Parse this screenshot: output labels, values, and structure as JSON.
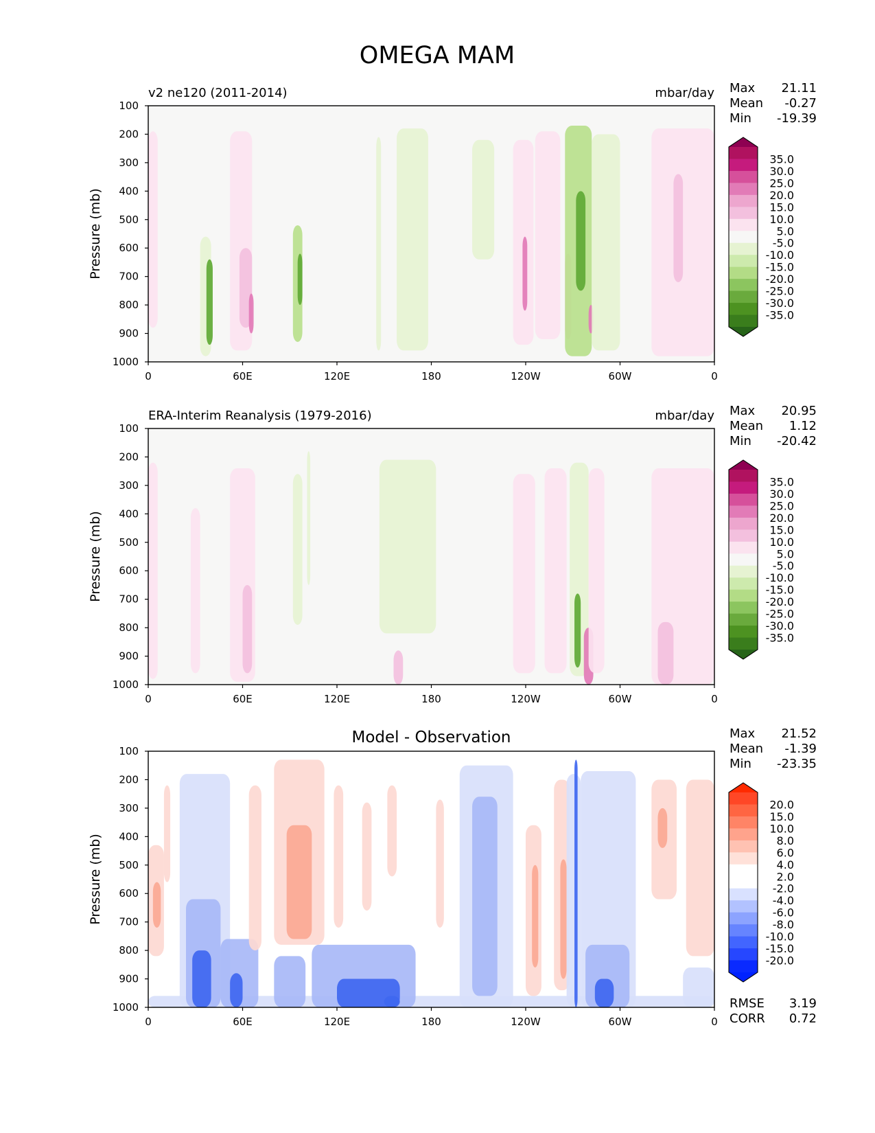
{
  "figure_title": "OMEGA MAM",
  "colors": {
    "axis": "#000000",
    "field_bg": "#f7f7f6",
    "pink_light": "#fce3f0",
    "pink_mid": "#f3c0de",
    "pink_strong": "#e27bb7",
    "green_light": "#e6f3d2",
    "green_mid": "#b9e08c",
    "green_strong": "#5fa935",
    "blue_light": "#d8e0fb",
    "blue_mid": "#a8b8f7",
    "blue_strong": "#3f67f0",
    "red_light": "#fdd9d2",
    "red_mid": "#fba894",
    "red_strong": "#f06a4c"
  },
  "chart_data": [
    {
      "type": "heatmap",
      "id": "model",
      "title_left": "v2 ne120 (2011-2014)",
      "title_center": "",
      "units": "mbar/day",
      "ylabel": "Pressure (mb)",
      "yticks": [
        "100",
        "200",
        "300",
        "400",
        "500",
        "600",
        "700",
        "800",
        "900",
        "1000"
      ],
      "ylim": [
        1000,
        100
      ],
      "xticks": [
        "0",
        "60E",
        "120E",
        "180",
        "120W",
        "60W",
        "0"
      ],
      "xlim_deg_east": [
        0,
        360
      ],
      "stats": [
        {
          "label": "Max",
          "value": "21.11"
        },
        {
          "label": "Mean",
          "value": "-0.27"
        },
        {
          "label": "Min",
          "value": "-19.39"
        }
      ],
      "colorbar": {
        "levels": [
          "35.0",
          "30.0",
          "25.0",
          "20.0",
          "15.0",
          "10.0",
          "5.0",
          "-5.0",
          "-10.0",
          "-15.0",
          "-20.0",
          "-25.0",
          "-30.0",
          "-35.0"
        ],
        "colors": [
          "#8e0152",
          "#b0125f",
          "#c51b7d",
          "#d6509b",
          "#e27bb7",
          "#eda6ce",
          "#f3c0de",
          "#fbe3ef",
          "#f7f7f6",
          "#e6f3d2",
          "#cdeaad",
          "#b3dc86",
          "#8cc55f",
          "#6aaa3d",
          "#4d9221",
          "#3a7d1c",
          "#276419"
        ]
      },
      "features": [
        {
          "lon0": 0,
          "lon1": 6,
          "p0": 190,
          "p1": 880,
          "v": 4
        },
        {
          "lon0": 33,
          "lon1": 40,
          "p0": 560,
          "p1": 980,
          "v": -6
        },
        {
          "lon0": 37,
          "lon1": 41,
          "p0": 640,
          "p1": 940,
          "v": -12
        },
        {
          "lon0": 52,
          "lon1": 66,
          "p0": 190,
          "p1": 960,
          "v": 5
        },
        {
          "lon0": 58,
          "lon1": 66,
          "p0": 600,
          "p1": 880,
          "v": 10
        },
        {
          "lon0": 64,
          "lon1": 67,
          "p0": 760,
          "p1": 900,
          "v": 18
        },
        {
          "lon0": 92,
          "lon1": 98,
          "p0": 520,
          "p1": 930,
          "v": -8
        },
        {
          "lon0": 95,
          "lon1": 98,
          "p0": 620,
          "p1": 800,
          "v": -15
        },
        {
          "lon0": 145,
          "lon1": 148,
          "p0": 210,
          "p1": 960,
          "v": -6
        },
        {
          "lon0": 158,
          "lon1": 178,
          "p0": 180,
          "p1": 960,
          "v": -6
        },
        {
          "lon0": 206,
          "lon1": 220,
          "p0": 220,
          "p1": 640,
          "v": -6
        },
        {
          "lon0": 232,
          "lon1": 245,
          "p0": 220,
          "p1": 940,
          "v": 5
        },
        {
          "lon0": 238,
          "lon1": 241,
          "p0": 560,
          "p1": 820,
          "v": 14
        },
        {
          "lon0": 246,
          "lon1": 262,
          "p0": 190,
          "p1": 920,
          "v": 5
        },
        {
          "lon0": 265,
          "lon1": 269,
          "p0": 620,
          "p1": 920,
          "v": 7
        },
        {
          "lon0": 265,
          "lon1": 282,
          "p0": 170,
          "p1": 980,
          "v": -7
        },
        {
          "lon0": 272,
          "lon1": 278,
          "p0": 400,
          "p1": 750,
          "v": -14
        },
        {
          "lon0": 280,
          "lon1": 283,
          "p0": 800,
          "p1": 900,
          "v": 16
        },
        {
          "lon0": 282,
          "lon1": 300,
          "p0": 200,
          "p1": 960,
          "v": -6
        },
        {
          "lon0": 320,
          "lon1": 360,
          "p0": 180,
          "p1": 980,
          "v": 6
        },
        {
          "lon0": 334,
          "lon1": 340,
          "p0": 340,
          "p1": 720,
          "v": 11
        }
      ]
    },
    {
      "type": "heatmap",
      "id": "obs",
      "title_left": "ERA-Interim Reanalysis (1979-2016)",
      "title_center": "",
      "units": "mbar/day",
      "ylabel": "Pressure (mb)",
      "yticks": [
        "100",
        "200",
        "300",
        "400",
        "500",
        "600",
        "700",
        "800",
        "900",
        "1000"
      ],
      "ylim": [
        1000,
        100
      ],
      "xticks": [
        "0",
        "60E",
        "120E",
        "180",
        "120W",
        "60W",
        "0"
      ],
      "xlim_deg_east": [
        0,
        360
      ],
      "stats": [
        {
          "label": "Max",
          "value": "20.95"
        },
        {
          "label": "Mean",
          "value": "1.12"
        },
        {
          "label": "Min",
          "value": "-20.42"
        }
      ],
      "colorbar": {
        "levels": [
          "35.0",
          "30.0",
          "25.0",
          "20.0",
          "15.0",
          "10.0",
          "5.0",
          "-5.0",
          "-10.0",
          "-15.0",
          "-20.0",
          "-25.0",
          "-30.0",
          "-35.0"
        ],
        "colors": [
          "#8e0152",
          "#b0125f",
          "#c51b7d",
          "#d6509b",
          "#e27bb7",
          "#eda6ce",
          "#f3c0de",
          "#fbe3ef",
          "#f7f7f6",
          "#e6f3d2",
          "#cdeaad",
          "#b3dc86",
          "#8cc55f",
          "#6aaa3d",
          "#4d9221",
          "#3a7d1c",
          "#276419"
        ]
      },
      "features": [
        {
          "lon0": 0,
          "lon1": 6,
          "p0": 220,
          "p1": 980,
          "v": 4
        },
        {
          "lon0": 27,
          "lon1": 33,
          "p0": 380,
          "p1": 960,
          "v": 4
        },
        {
          "lon0": 52,
          "lon1": 68,
          "p0": 240,
          "p1": 990,
          "v": 5
        },
        {
          "lon0": 60,
          "lon1": 66,
          "p0": 650,
          "p1": 960,
          "v": 10
        },
        {
          "lon0": 92,
          "lon1": 98,
          "p0": 260,
          "p1": 790,
          "v": -6
        },
        {
          "lon0": 101,
          "lon1": 103,
          "p0": 180,
          "p1": 650,
          "v": -6
        },
        {
          "lon0": 147,
          "lon1": 183,
          "p0": 210,
          "p1": 820,
          "v": -6
        },
        {
          "lon0": 156,
          "lon1": 162,
          "p0": 880,
          "p1": 1000,
          "v": 8
        },
        {
          "lon0": 232,
          "lon1": 246,
          "p0": 260,
          "p1": 960,
          "v": 5
        },
        {
          "lon0": 252,
          "lon1": 266,
          "p0": 240,
          "p1": 960,
          "v": 5
        },
        {
          "lon0": 268,
          "lon1": 280,
          "p0": 220,
          "p1": 970,
          "v": -6
        },
        {
          "lon0": 271,
          "lon1": 275,
          "p0": 680,
          "p1": 940,
          "v": -14
        },
        {
          "lon0": 277,
          "lon1": 283,
          "p0": 800,
          "p1": 1000,
          "v": 15
        },
        {
          "lon0": 280,
          "lon1": 290,
          "p0": 240,
          "p1": 960,
          "v": 4
        },
        {
          "lon0": 320,
          "lon1": 360,
          "p0": 240,
          "p1": 1000,
          "v": 5
        },
        {
          "lon0": 324,
          "lon1": 334,
          "p0": 780,
          "p1": 1000,
          "v": 9
        }
      ]
    },
    {
      "type": "heatmap",
      "id": "diff",
      "title_left": "",
      "title_center": "Model - Observation",
      "units": "",
      "ylabel": "Pressure (mb)",
      "yticks": [
        "100",
        "200",
        "300",
        "400",
        "500",
        "600",
        "700",
        "800",
        "900",
        "1000"
      ],
      "ylim": [
        1000,
        100
      ],
      "xticks": [
        "0",
        "60E",
        "120E",
        "180",
        "120W",
        "60W",
        "0"
      ],
      "xlim_deg_east": [
        0,
        360
      ],
      "stats": [
        {
          "label": "Max",
          "value": "21.52"
        },
        {
          "label": "Mean",
          "value": "-1.39"
        },
        {
          "label": "Min",
          "value": "-23.35"
        }
      ],
      "extra_stats": [
        {
          "label": "RMSE",
          "value": "3.19"
        },
        {
          "label": "CORR",
          "value": "0.72"
        }
      ],
      "colorbar": {
        "levels": [
          "20.0",
          "15.0",
          "10.0",
          "8.0",
          "6.0",
          "4.0",
          "2.0",
          "-2.0",
          "-4.0",
          "-6.0",
          "-8.0",
          "-10.0",
          "-15.0",
          "-20.0"
        ],
        "colors": [
          "#ff2a00",
          "#ff4726",
          "#ff6542",
          "#ff8466",
          "#ffa38c",
          "#ffc2b2",
          "#ffe1d9",
          "#ffffff",
          "#ffffff",
          "#d9e1ff",
          "#b2c2ff",
          "#8ca3ff",
          "#6684ff",
          "#4265ff",
          "#2647ff",
          "#0a2aff",
          "#0022ff"
        ]
      },
      "features": [
        {
          "lon0": 0,
          "lon1": 10,
          "p0": 430,
          "p1": 820,
          "v": 4
        },
        {
          "lon0": 3,
          "lon1": 8,
          "p0": 560,
          "p1": 720,
          "v": 9
        },
        {
          "lon0": 10,
          "lon1": 14,
          "p0": 220,
          "p1": 560,
          "v": 3
        },
        {
          "lon0": 0,
          "lon1": 360,
          "p0": 960,
          "p1": 1000,
          "v": -3
        },
        {
          "lon0": 20,
          "lon1": 52,
          "p0": 180,
          "p1": 1000,
          "v": -4
        },
        {
          "lon0": 24,
          "lon1": 46,
          "p0": 620,
          "p1": 1000,
          "v": -8
        },
        {
          "lon0": 28,
          "lon1": 40,
          "p0": 800,
          "p1": 1000,
          "v": -14
        },
        {
          "lon0": 46,
          "lon1": 70,
          "p0": 760,
          "p1": 1000,
          "v": -9
        },
        {
          "lon0": 52,
          "lon1": 60,
          "p0": 880,
          "p1": 1000,
          "v": -18
        },
        {
          "lon0": 64,
          "lon1": 72,
          "p0": 220,
          "p1": 800,
          "v": 4
        },
        {
          "lon0": 80,
          "lon1": 112,
          "p0": 130,
          "p1": 780,
          "v": 4
        },
        {
          "lon0": 88,
          "lon1": 104,
          "p0": 360,
          "p1": 760,
          "v": 8
        },
        {
          "lon0": 80,
          "lon1": 100,
          "p0": 820,
          "p1": 1000,
          "v": -8
        },
        {
          "lon0": 104,
          "lon1": 170,
          "p0": 780,
          "p1": 1000,
          "v": -7
        },
        {
          "lon0": 120,
          "lon1": 160,
          "p0": 900,
          "p1": 1000,
          "v": -13
        },
        {
          "lon0": 150,
          "lon1": 160,
          "p0": 960,
          "p1": 1000,
          "v": -20
        },
        {
          "lon0": 118,
          "lon1": 124,
          "p0": 220,
          "p1": 720,
          "v": 3
        },
        {
          "lon0": 136,
          "lon1": 142,
          "p0": 280,
          "p1": 660,
          "v": 4
        },
        {
          "lon0": 152,
          "lon1": 158,
          "p0": 220,
          "p1": 540,
          "v": 4
        },
        {
          "lon0": 183,
          "lon1": 188,
          "p0": 270,
          "p1": 720,
          "v": 3
        },
        {
          "lon0": 198,
          "lon1": 232,
          "p0": 150,
          "p1": 1000,
          "v": -3
        },
        {
          "lon0": 206,
          "lon1": 222,
          "p0": 260,
          "p1": 960,
          "v": -6
        },
        {
          "lon0": 240,
          "lon1": 250,
          "p0": 360,
          "p1": 960,
          "v": 4
        },
        {
          "lon0": 244,
          "lon1": 248,
          "p0": 500,
          "p1": 860,
          "v": 9
        },
        {
          "lon0": 258,
          "lon1": 268,
          "p0": 200,
          "p1": 940,
          "v": 4
        },
        {
          "lon0": 262,
          "lon1": 266,
          "p0": 480,
          "p1": 900,
          "v": 9
        },
        {
          "lon0": 266,
          "lon1": 275,
          "p0": 180,
          "p1": 1000,
          "v": -5
        },
        {
          "lon0": 271,
          "lon1": 273,
          "p0": 130,
          "p1": 1000,
          "v": -16
        },
        {
          "lon0": 275,
          "lon1": 310,
          "p0": 170,
          "p1": 1000,
          "v": -4
        },
        {
          "lon0": 278,
          "lon1": 306,
          "p0": 780,
          "p1": 1000,
          "v": -9
        },
        {
          "lon0": 284,
          "lon1": 296,
          "p0": 900,
          "p1": 1000,
          "v": -15
        },
        {
          "lon0": 320,
          "lon1": 336,
          "p0": 200,
          "p1": 620,
          "v": 4
        },
        {
          "lon0": 324,
          "lon1": 330,
          "p0": 300,
          "p1": 440,
          "v": 8
        },
        {
          "lon0": 342,
          "lon1": 360,
          "p0": 200,
          "p1": 820,
          "v": 3
        },
        {
          "lon0": 340,
          "lon1": 360,
          "p0": 860,
          "p1": 1000,
          "v": -5
        }
      ]
    }
  ]
}
